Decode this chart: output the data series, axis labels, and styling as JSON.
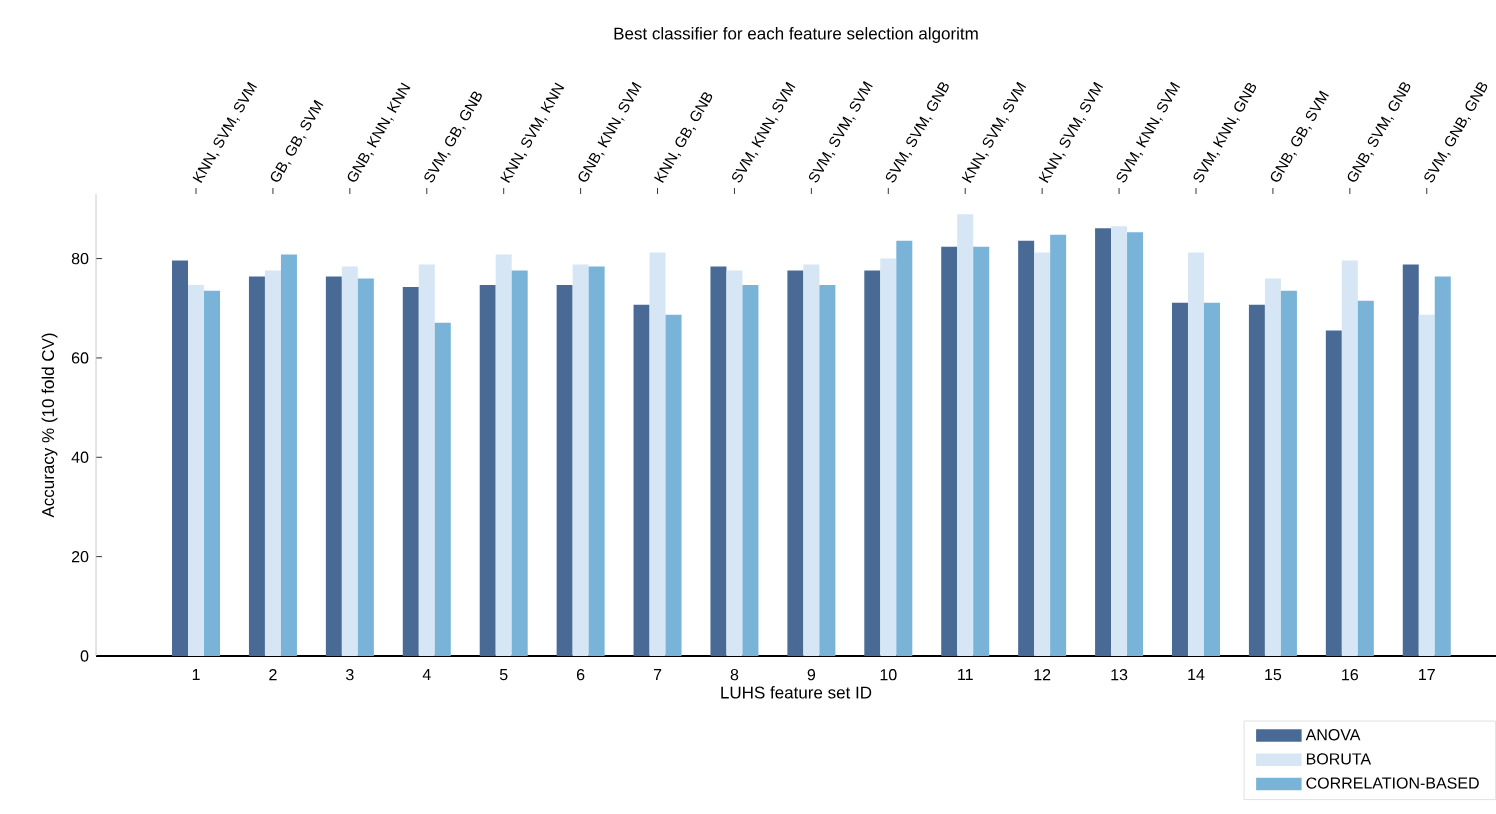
{
  "chart_data": {
    "type": "bar",
    "title": "Best classifier for each feature selection algoritm",
    "xlabel": "LUHS feature set ID",
    "ylabel": "Accuracy % (10 fold CV)",
    "categories": [
      "1",
      "2",
      "3",
      "4",
      "5",
      "6",
      "7",
      "8",
      "9",
      "10",
      "11",
      "12",
      "13",
      "14",
      "15",
      "16",
      "17"
    ],
    "series": [
      {
        "name": "ANOVA",
        "color": "#4a6a96",
        "values": [
          79.6,
          76.4,
          76.4,
          74.3,
          74.7,
          74.7,
          70.7,
          78.4,
          77.6,
          77.6,
          82.4,
          83.6,
          86.1,
          71.1,
          70.7,
          65.5,
          78.8
        ]
      },
      {
        "name": "BORUTA",
        "color": "#d6e6f4",
        "values": [
          74.7,
          77.6,
          78.4,
          78.8,
          80.8,
          78.8,
          81.2,
          77.6,
          78.8,
          80.0,
          88.9,
          81.2,
          86.5,
          81.2,
          76.0,
          79.6,
          68.7
        ]
      },
      {
        "name": "CORRELATION-BASED",
        "color": "#79b3d8",
        "values": [
          73.5,
          80.8,
          76.0,
          67.1,
          77.6,
          78.4,
          68.7,
          74.7,
          74.7,
          83.6,
          82.4,
          84.8,
          85.3,
          71.1,
          73.5,
          71.5,
          76.4
        ]
      }
    ],
    "annotations": [
      "KNN, SVM, SVM",
      "GB, GB, SVM",
      "GNB, KNN, KNN",
      "SVM, GB, GNB",
      "KNN, SVM, KNN",
      "GNB, KNN, SVM",
      "KNN, GB, GNB",
      "SVM, KNN, SVM",
      "SVM, SVM, SVM",
      "SVM, SVM, GNB",
      "KNN, SVM, SVM",
      "KNN, SVM, SVM",
      "SVM, KNN, SVM",
      "SVM, KNN, GNB",
      "GNB, GB, SVM",
      "GNB, SVM, GNB",
      "SVM, GNB, GNB"
    ],
    "ylim": [
      0,
      93
    ],
    "yticks": [
      0,
      20,
      40,
      60,
      80
    ],
    "legend": "bottom right"
  }
}
